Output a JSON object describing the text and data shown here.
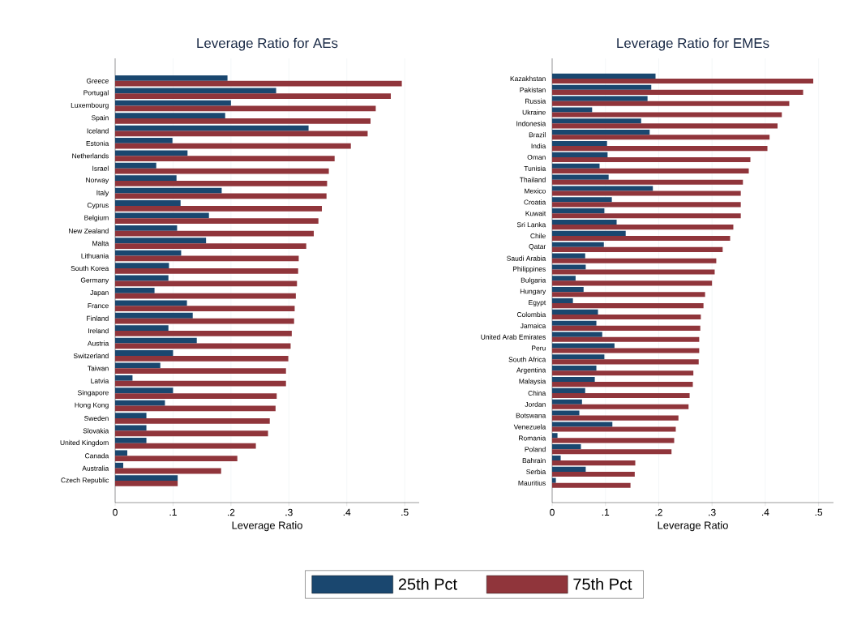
{
  "chart_data": [
    {
      "type": "bar",
      "orientation": "horizontal",
      "title": "Leverage Ratio for AEs",
      "xlabel": "Leverage Ratio",
      "categories": [
        "Greece",
        "Portugal",
        "Luxembourg",
        "Spain",
        "Iceland",
        "Estonia",
        "Netherlands",
        "Israel",
        "Norway",
        "Italy",
        "Cyprus",
        "Belgium",
        "New Zealand",
        "Malta",
        "Lithuania",
        "South Korea",
        "Germany",
        "Japan",
        "France",
        "Finland",
        "Ireland",
        "Austria",
        "Switzerland",
        "Taiwan",
        "Latvia",
        "Singapore",
        "Hong Kong",
        "Sweden",
        "Slovakia",
        "United Kingdom",
        "Canada",
        "Australia",
        "Czech Republic"
      ],
      "series": [
        {
          "name": "25th Pct",
          "color": "#1a476f",
          "values": [
            0.194,
            0.278,
            0.2,
            0.19,
            0.334,
            0.099,
            0.125,
            0.071,
            0.106,
            0.184,
            0.113,
            0.162,
            0.107,
            0.157,
            0.114,
            0.093,
            0.092,
            0.068,
            0.124,
            0.134,
            0.092,
            0.141,
            0.1,
            0.078,
            0.03,
            0.1,
            0.086,
            0.054,
            0.054,
            0.054,
            0.021,
            0.014,
            0.108
          ]
        },
        {
          "name": "75th Pct",
          "color": "#90353b",
          "values": [
            0.495,
            0.476,
            0.45,
            0.441,
            0.436,
            0.407,
            0.379,
            0.369,
            0.366,
            0.365,
            0.357,
            0.351,
            0.343,
            0.33,
            0.317,
            0.316,
            0.314,
            0.312,
            0.31,
            0.309,
            0.305,
            0.303,
            0.299,
            0.295,
            0.295,
            0.279,
            0.277,
            0.267,
            0.264,
            0.243,
            0.211,
            0.183,
            0.108
          ]
        }
      ],
      "xlim": [
        0,
        0.525
      ],
      "xticks": [
        0,
        {
          "value": 0.1,
          "label": ".1"
        },
        {
          "value": 0.2,
          "label": ".2"
        },
        {
          "value": 0.3,
          "label": ".3"
        },
        {
          "value": 0.4,
          "label": ".4"
        },
        {
          "value": 0.5,
          "label": ".5"
        }
      ],
      "grid": "x",
      "legend": "bottom"
    },
    {
      "type": "bar",
      "orientation": "horizontal",
      "title": "Leverage Ratio for EMEs",
      "xlabel": "Leverage Ratio",
      "categories": [
        "Kazakhstan",
        "Pakistan",
        "Russia",
        "Ukraine",
        "Indonesia",
        "Brazil",
        "India",
        "Oman",
        "Tunisia",
        "Thailand",
        "Mexico",
        "Croatia",
        "Kuwait",
        "Sri Lanka",
        "Chile",
        "Qatar",
        "Saudi Arabia",
        "Philippines",
        "Bulgaria",
        "Hungary",
        "Egypt",
        "Colombia",
        "Jamaica",
        "United Arab Emirates",
        "Peru",
        "South Africa",
        "Argentina",
        "Malaysia",
        "China",
        "Jordan",
        "Botswana",
        "Venezuela",
        "Romania",
        "Poland",
        "Bahrain",
        "Serbia",
        "Mauritius"
      ],
      "series": [
        {
          "color": "#1a476f",
          "values": [
            0.194,
            0.186,
            0.179,
            0.075,
            0.167,
            0.183,
            0.103,
            0.104,
            0.089,
            0.106,
            0.189,
            0.112,
            0.098,
            0.121,
            0.138,
            0.097,
            0.062,
            0.063,
            0.044,
            0.059,
            0.039,
            0.086,
            0.083,
            0.094,
            0.117,
            0.098,
            0.083,
            0.08,
            0.062,
            0.056,
            0.051,
            0.113,
            0.01,
            0.054,
            0.016,
            0.063,
            0.007
          ]
        },
        {
          "color": "#90353b",
          "values": [
            0.49,
            0.471,
            0.445,
            0.431,
            0.423,
            0.408,
            0.404,
            0.372,
            0.369,
            0.358,
            0.354,
            0.354,
            0.354,
            0.34,
            0.334,
            0.32,
            0.308,
            0.305,
            0.3,
            0.287,
            0.284,
            0.279,
            0.278,
            0.276,
            0.276,
            0.275,
            0.265,
            0.264,
            0.258,
            0.256,
            0.237,
            0.232,
            0.229,
            0.224,
            0.156,
            0.155,
            0.147
          ]
        }
      ],
      "xlim": [
        0,
        0.528
      ],
      "xticks": [
        0,
        {
          "value": 0.1,
          "label": ".1"
        },
        {
          "value": 0.2,
          "label": ".2"
        },
        {
          "value": 0.3,
          "label": ".3"
        },
        {
          "value": 0.4,
          "label": ".4"
        },
        {
          "value": 0.5,
          "label": ".5"
        }
      ],
      "grid": "x"
    }
  ]
}
